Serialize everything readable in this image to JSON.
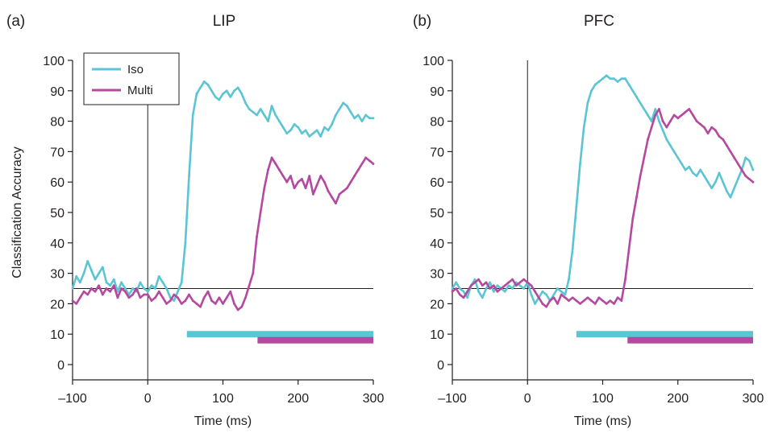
{
  "chart_data": [
    {
      "type": "line",
      "panel_label": "(a)",
      "title": "LIP",
      "xlabel": "Time (ms)",
      "ylabel": "Classification Accuracy",
      "xlim": [
        -100,
        300
      ],
      "ylim": [
        0,
        100
      ],
      "x_ticks": [
        -100,
        0,
        100,
        200,
        300
      ],
      "x_tick_labels": [
        "–100",
        "0",
        "100",
        "200",
        "300"
      ],
      "y_ticks": [
        0,
        10,
        20,
        30,
        40,
        50,
        60,
        70,
        80,
        90,
        100
      ],
      "y_tick_labels": [
        "0",
        "10",
        "20",
        "30",
        "40",
        "50",
        "60",
        "70",
        "80",
        "90",
        "100"
      ],
      "chance_level": 25,
      "stimulus_onset": 0,
      "grid": false,
      "legend": {
        "placement": "top-left",
        "entries": [
          "Iso",
          "Multi"
        ]
      },
      "series": [
        {
          "name": "Iso",
          "color": "#5bc5d3",
          "x": [
            -100,
            -95,
            -90,
            -85,
            -80,
            -75,
            -70,
            -65,
            -60,
            -55,
            -50,
            -45,
            -40,
            -35,
            -30,
            -25,
            -20,
            -15,
            -10,
            -5,
            0,
            5,
            10,
            15,
            20,
            25,
            30,
            35,
            40,
            45,
            50,
            55,
            60,
            65,
            70,
            75,
            80,
            85,
            90,
            95,
            100,
            105,
            110,
            115,
            120,
            125,
            130,
            135,
            140,
            145,
            150,
            155,
            160,
            165,
            170,
            175,
            180,
            185,
            190,
            195,
            200,
            205,
            210,
            215,
            220,
            225,
            230,
            235,
            240,
            245,
            250,
            255,
            260,
            265,
            270,
            275,
            280,
            285,
            290,
            295,
            300
          ],
          "values": [
            25,
            29,
            27,
            30,
            34,
            31,
            28,
            30,
            32,
            27,
            26,
            28,
            24,
            27,
            25,
            23,
            25,
            24,
            27,
            25,
            24,
            26,
            25,
            29,
            27,
            25,
            22,
            21,
            24,
            27,
            40,
            62,
            82,
            89,
            91,
            93,
            92,
            90,
            88,
            87,
            89,
            90,
            88,
            90,
            91,
            89,
            86,
            84,
            83,
            82,
            84,
            82,
            80,
            85,
            82,
            80,
            78,
            76,
            77,
            79,
            78,
            76,
            77,
            75,
            76,
            77,
            75,
            78,
            77,
            79,
            82,
            84,
            86,
            85,
            83,
            81,
            82,
            80,
            82,
            81,
            81
          ]
        },
        {
          "name": "Multi",
          "color": "#b5489f",
          "x": [
            -100,
            -95,
            -90,
            -85,
            -80,
            -75,
            -70,
            -65,
            -60,
            -55,
            -50,
            -45,
            -40,
            -35,
            -30,
            -25,
            -20,
            -15,
            -10,
            -5,
            0,
            5,
            10,
            15,
            20,
            25,
            30,
            35,
            40,
            45,
            50,
            55,
            60,
            65,
            70,
            75,
            80,
            85,
            90,
            95,
            100,
            105,
            110,
            115,
            120,
            125,
            130,
            135,
            140,
            145,
            150,
            155,
            160,
            165,
            170,
            175,
            180,
            185,
            190,
            195,
            200,
            205,
            210,
            215,
            220,
            225,
            230,
            235,
            240,
            245,
            250,
            255,
            260,
            265,
            270,
            275,
            280,
            285,
            290,
            295,
            300
          ],
          "values": [
            21,
            20,
            22,
            24,
            23,
            25,
            24,
            26,
            23,
            25,
            24,
            26,
            22,
            25,
            24,
            22,
            23,
            25,
            22,
            23,
            23,
            21,
            22,
            24,
            22,
            20,
            21,
            23,
            22,
            20,
            21,
            23,
            21,
            20,
            19,
            22,
            24,
            21,
            20,
            22,
            20,
            22,
            24,
            20,
            18,
            19,
            22,
            26,
            30,
            42,
            50,
            58,
            64,
            68,
            66,
            64,
            62,
            60,
            62,
            58,
            60,
            61,
            58,
            62,
            56,
            59,
            62,
            60,
            57,
            55,
            53,
            56,
            57,
            58,
            60,
            62,
            64,
            66,
            68,
            67,
            66
          ]
        }
      ],
      "significance_bars": [
        {
          "series": "Iso",
          "x_start": 52,
          "x_end": 300,
          "y": 10
        },
        {
          "series": "Multi",
          "x_start": 146,
          "x_end": 300,
          "y": 8
        }
      ]
    },
    {
      "type": "line",
      "panel_label": "(b)",
      "title": "PFC",
      "xlabel": "Time (ms)",
      "ylabel": "",
      "xlim": [
        -100,
        300
      ],
      "ylim": [
        0,
        100
      ],
      "x_ticks": [
        -100,
        0,
        100,
        200,
        300
      ],
      "x_tick_labels": [
        "–100",
        "0",
        "100",
        "200",
        "300"
      ],
      "y_ticks": [
        0,
        10,
        20,
        30,
        40,
        50,
        60,
        70,
        80,
        90,
        100
      ],
      "y_tick_labels": [
        "0",
        "10",
        "20",
        "30",
        "40",
        "50",
        "60",
        "70",
        "80",
        "90",
        "100"
      ],
      "chance_level": 25,
      "stimulus_onset": 0,
      "grid": false,
      "series": [
        {
          "name": "Iso",
          "color": "#5bc5d3",
          "x": [
            -100,
            -95,
            -90,
            -85,
            -80,
            -75,
            -70,
            -65,
            -60,
            -55,
            -50,
            -45,
            -40,
            -35,
            -30,
            -25,
            -20,
            -15,
            -10,
            -5,
            0,
            5,
            10,
            15,
            20,
            25,
            30,
            35,
            40,
            45,
            50,
            55,
            60,
            65,
            70,
            75,
            80,
            85,
            90,
            95,
            100,
            105,
            110,
            115,
            120,
            125,
            130,
            135,
            140,
            145,
            150,
            155,
            160,
            165,
            170,
            175,
            180,
            185,
            190,
            195,
            200,
            205,
            210,
            215,
            220,
            225,
            230,
            235,
            240,
            245,
            250,
            255,
            260,
            265,
            270,
            275,
            280,
            285,
            290,
            295,
            300
          ],
          "values": [
            25,
            27,
            25,
            24,
            22,
            26,
            28,
            24,
            22,
            25,
            27,
            24,
            26,
            25,
            24,
            26,
            25,
            27,
            26,
            25,
            27,
            23,
            20,
            22,
            24,
            23,
            21,
            23,
            25,
            24,
            23,
            28,
            38,
            52,
            66,
            78,
            86,
            90,
            92,
            93,
            94,
            95,
            94,
            94,
            93,
            94,
            94,
            92,
            90,
            88,
            86,
            84,
            82,
            80,
            84,
            80,
            77,
            74,
            72,
            70,
            68,
            66,
            64,
            65,
            63,
            62,
            64,
            62,
            60,
            58,
            60,
            63,
            60,
            57,
            55,
            58,
            61,
            64,
            68,
            67,
            64
          ]
        },
        {
          "name": "Multi",
          "color": "#b5489f",
          "x": [
            -100,
            -95,
            -90,
            -85,
            -80,
            -75,
            -70,
            -65,
            -60,
            -55,
            -50,
            -45,
            -40,
            -35,
            -30,
            -25,
            -20,
            -15,
            -10,
            -5,
            0,
            5,
            10,
            15,
            20,
            25,
            30,
            35,
            40,
            45,
            50,
            55,
            60,
            65,
            70,
            75,
            80,
            85,
            90,
            95,
            100,
            105,
            110,
            115,
            120,
            125,
            130,
            135,
            140,
            145,
            150,
            155,
            160,
            165,
            170,
            175,
            180,
            185,
            190,
            195,
            200,
            205,
            210,
            215,
            220,
            225,
            230,
            235,
            240,
            245,
            250,
            255,
            260,
            265,
            270,
            275,
            280,
            285,
            290,
            295,
            300
          ],
          "values": [
            24,
            25,
            23,
            22,
            24,
            26,
            27,
            28,
            26,
            27,
            25,
            26,
            24,
            25,
            26,
            27,
            28,
            26,
            27,
            28,
            27,
            26,
            24,
            22,
            20,
            19,
            21,
            22,
            20,
            23,
            22,
            21,
            22,
            21,
            20,
            21,
            22,
            21,
            20,
            22,
            21,
            20,
            21,
            20,
            22,
            21,
            28,
            38,
            48,
            55,
            62,
            68,
            74,
            78,
            82,
            84,
            80,
            78,
            80,
            82,
            81,
            82,
            83,
            84,
            82,
            80,
            79,
            78,
            76,
            78,
            77,
            75,
            74,
            72,
            70,
            68,
            66,
            64,
            62,
            61,
            60
          ]
        }
      ],
      "significance_bars": [
        {
          "series": "Iso",
          "x_start": 65,
          "x_end": 300,
          "y": 10
        },
        {
          "series": "Multi",
          "x_start": 133,
          "x_end": 300,
          "y": 8
        }
      ]
    }
  ]
}
